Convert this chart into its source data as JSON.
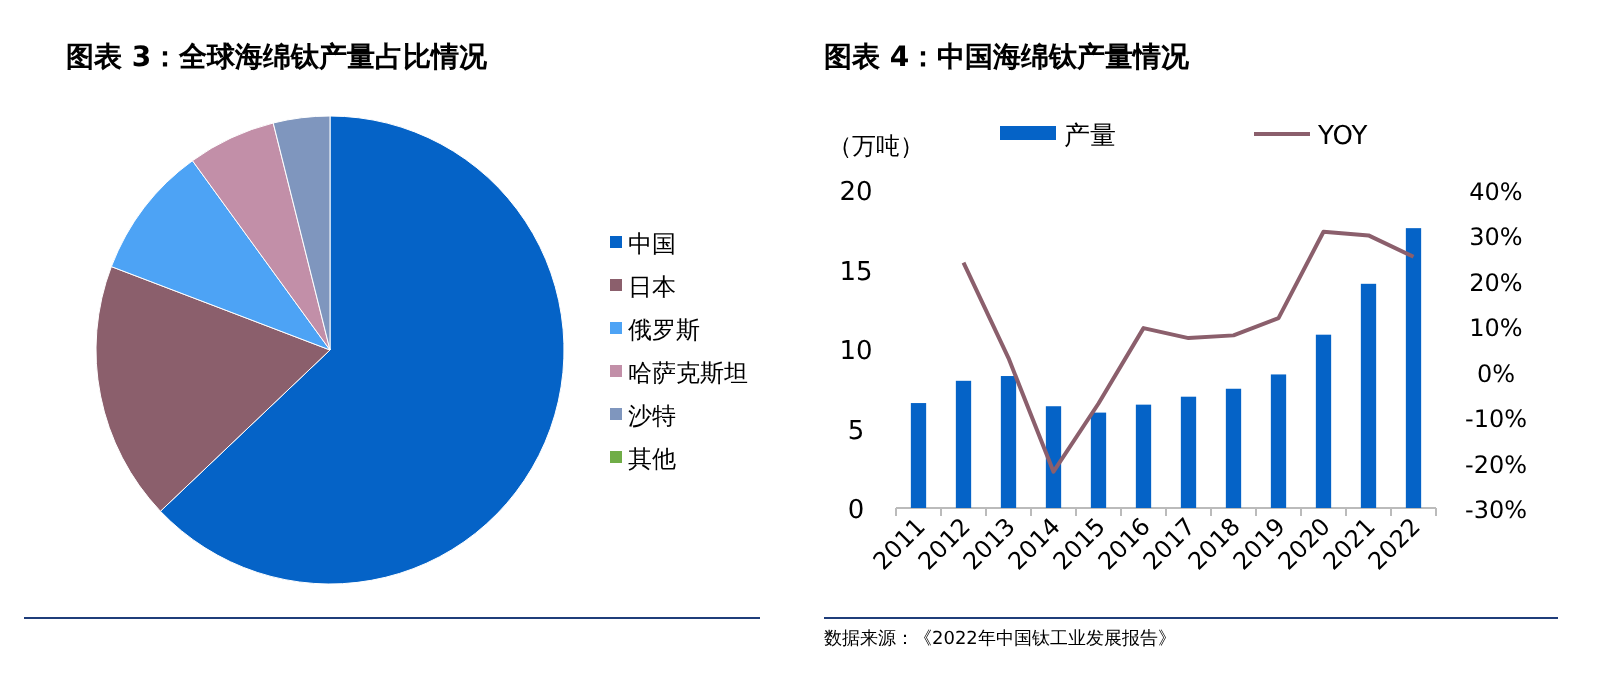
{
  "chart_data": [
    {
      "type": "pie",
      "title": "图表 3：全球海绵钛产量占比情况",
      "categories": [
        "中国",
        "日本",
        "俄罗斯",
        "哈萨克斯坦",
        "沙特",
        "其他"
      ],
      "values": [
        62.9,
        17.9,
        9.2,
        6.1,
        3.9,
        0
      ],
      "colors": [
        "#0563c7",
        "#8b5f6c",
        "#4da3f5",
        "#c28fa8",
        "#7f96be",
        "#70ad47"
      ],
      "legend": "right"
    },
    {
      "type": "bar",
      "title": "图表 4：中国海绵钛产量情况",
      "ylabel": "（万吨）",
      "categories": [
        "2011",
        "2012",
        "2013",
        "2014",
        "2015",
        "2016",
        "2017",
        "2018",
        "2019",
        "2020",
        "2021",
        "2022"
      ],
      "series": [
        {
          "name": "产量",
          "type": "bar",
          "color": "#0563c7",
          "values": [
            6.6,
            8.0,
            8.3,
            6.4,
            6.0,
            6.5,
            7.0,
            7.5,
            8.4,
            10.9,
            14.1,
            17.6
          ]
        },
        {
          "name": "YOY",
          "type": "line",
          "axis": "y2",
          "color": "#8b5f6c",
          "values": [
            null,
            24,
            3,
            -22,
            -7,
            9.6,
            7.4,
            8,
            11.8,
            30.8,
            30,
            25.3
          ]
        }
      ],
      "ylim": [
        0,
        20
      ],
      "yticks": [
        0,
        5,
        10,
        15,
        20
      ],
      "y2lim": [
        -30,
        40
      ],
      "y2ticks": [
        {
          "value": -30,
          "label": "-30%"
        },
        {
          "value": -20,
          "label": "-20%"
        },
        {
          "value": -10,
          "label": "-10%"
        },
        {
          "value": 0,
          "label": "0%"
        },
        {
          "value": 10,
          "label": "10%"
        },
        {
          "value": 20,
          "label": "20%"
        },
        {
          "value": 30,
          "label": "30%"
        },
        {
          "value": 40,
          "label": "40%"
        }
      ],
      "legend": "top",
      "grid": false,
      "marker": "none",
      "line_style": "solid",
      "annotations": [
        "数据来源：《2022年中国钛工业发展报告》"
      ]
    }
  ]
}
